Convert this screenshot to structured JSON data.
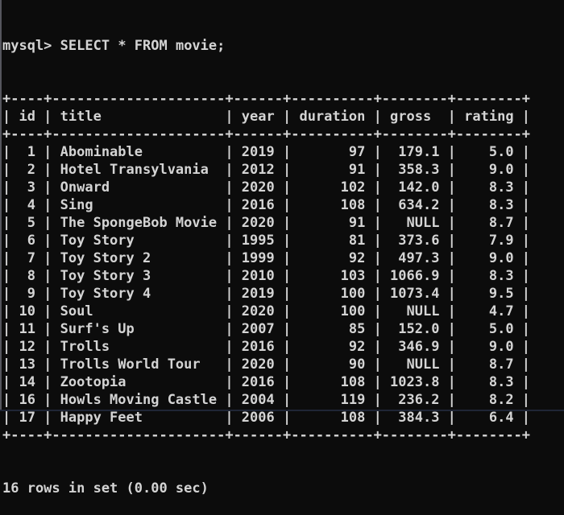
{
  "terminal": {
    "background": "#0c0c0c",
    "foreground": "#d4d4d4",
    "prompt": "mysql>",
    "command": "SELECT * FROM movie;",
    "status_line": "16 rows in set (0.00 sec)"
  },
  "result_table": {
    "columns": [
      "id",
      "title",
      "year",
      "duration",
      "gross",
      "rating"
    ],
    "rows": [
      [
        "1",
        "Abominable",
        "2019",
        "97",
        "179.1",
        "5.0"
      ],
      [
        "2",
        "Hotel Transylvania",
        "2012",
        "91",
        "358.3",
        "9.0"
      ],
      [
        "3",
        "Onward",
        "2020",
        "102",
        "142.0",
        "8.3"
      ],
      [
        "4",
        "Sing",
        "2016",
        "108",
        "634.2",
        "8.3"
      ],
      [
        "5",
        "The SpongeBob Movie",
        "2020",
        "91",
        "NULL",
        "8.7"
      ],
      [
        "6",
        "Toy Story",
        "1995",
        "81",
        "373.6",
        "7.9"
      ],
      [
        "7",
        "Toy Story 2",
        "1999",
        "92",
        "497.3",
        "9.0"
      ],
      [
        "8",
        "Toy Story 3",
        "2010",
        "103",
        "1066.9",
        "8.3"
      ],
      [
        "9",
        "Toy Story 4",
        "2019",
        "100",
        "1073.4",
        "9.5"
      ],
      [
        "10",
        "Soul",
        "2020",
        "100",
        "NULL",
        "4.7"
      ],
      [
        "11",
        "Surf's Up",
        "2007",
        "85",
        "152.0",
        "5.0"
      ],
      [
        "12",
        "Trolls",
        "2016",
        "92",
        "346.9",
        "9.0"
      ],
      [
        "13",
        "Trolls World Tour",
        "2020",
        "90",
        "NULL",
        "8.7"
      ],
      [
        "14",
        "Zootopia",
        "2016",
        "108",
        "1023.8",
        "8.3"
      ],
      [
        "16",
        "Howls Moving Castle",
        "2004",
        "119",
        "236.2",
        "8.2"
      ],
      [
        "17",
        "Happy Feet",
        "2006",
        "108",
        "384.3",
        "6.4"
      ]
    ]
  }
}
